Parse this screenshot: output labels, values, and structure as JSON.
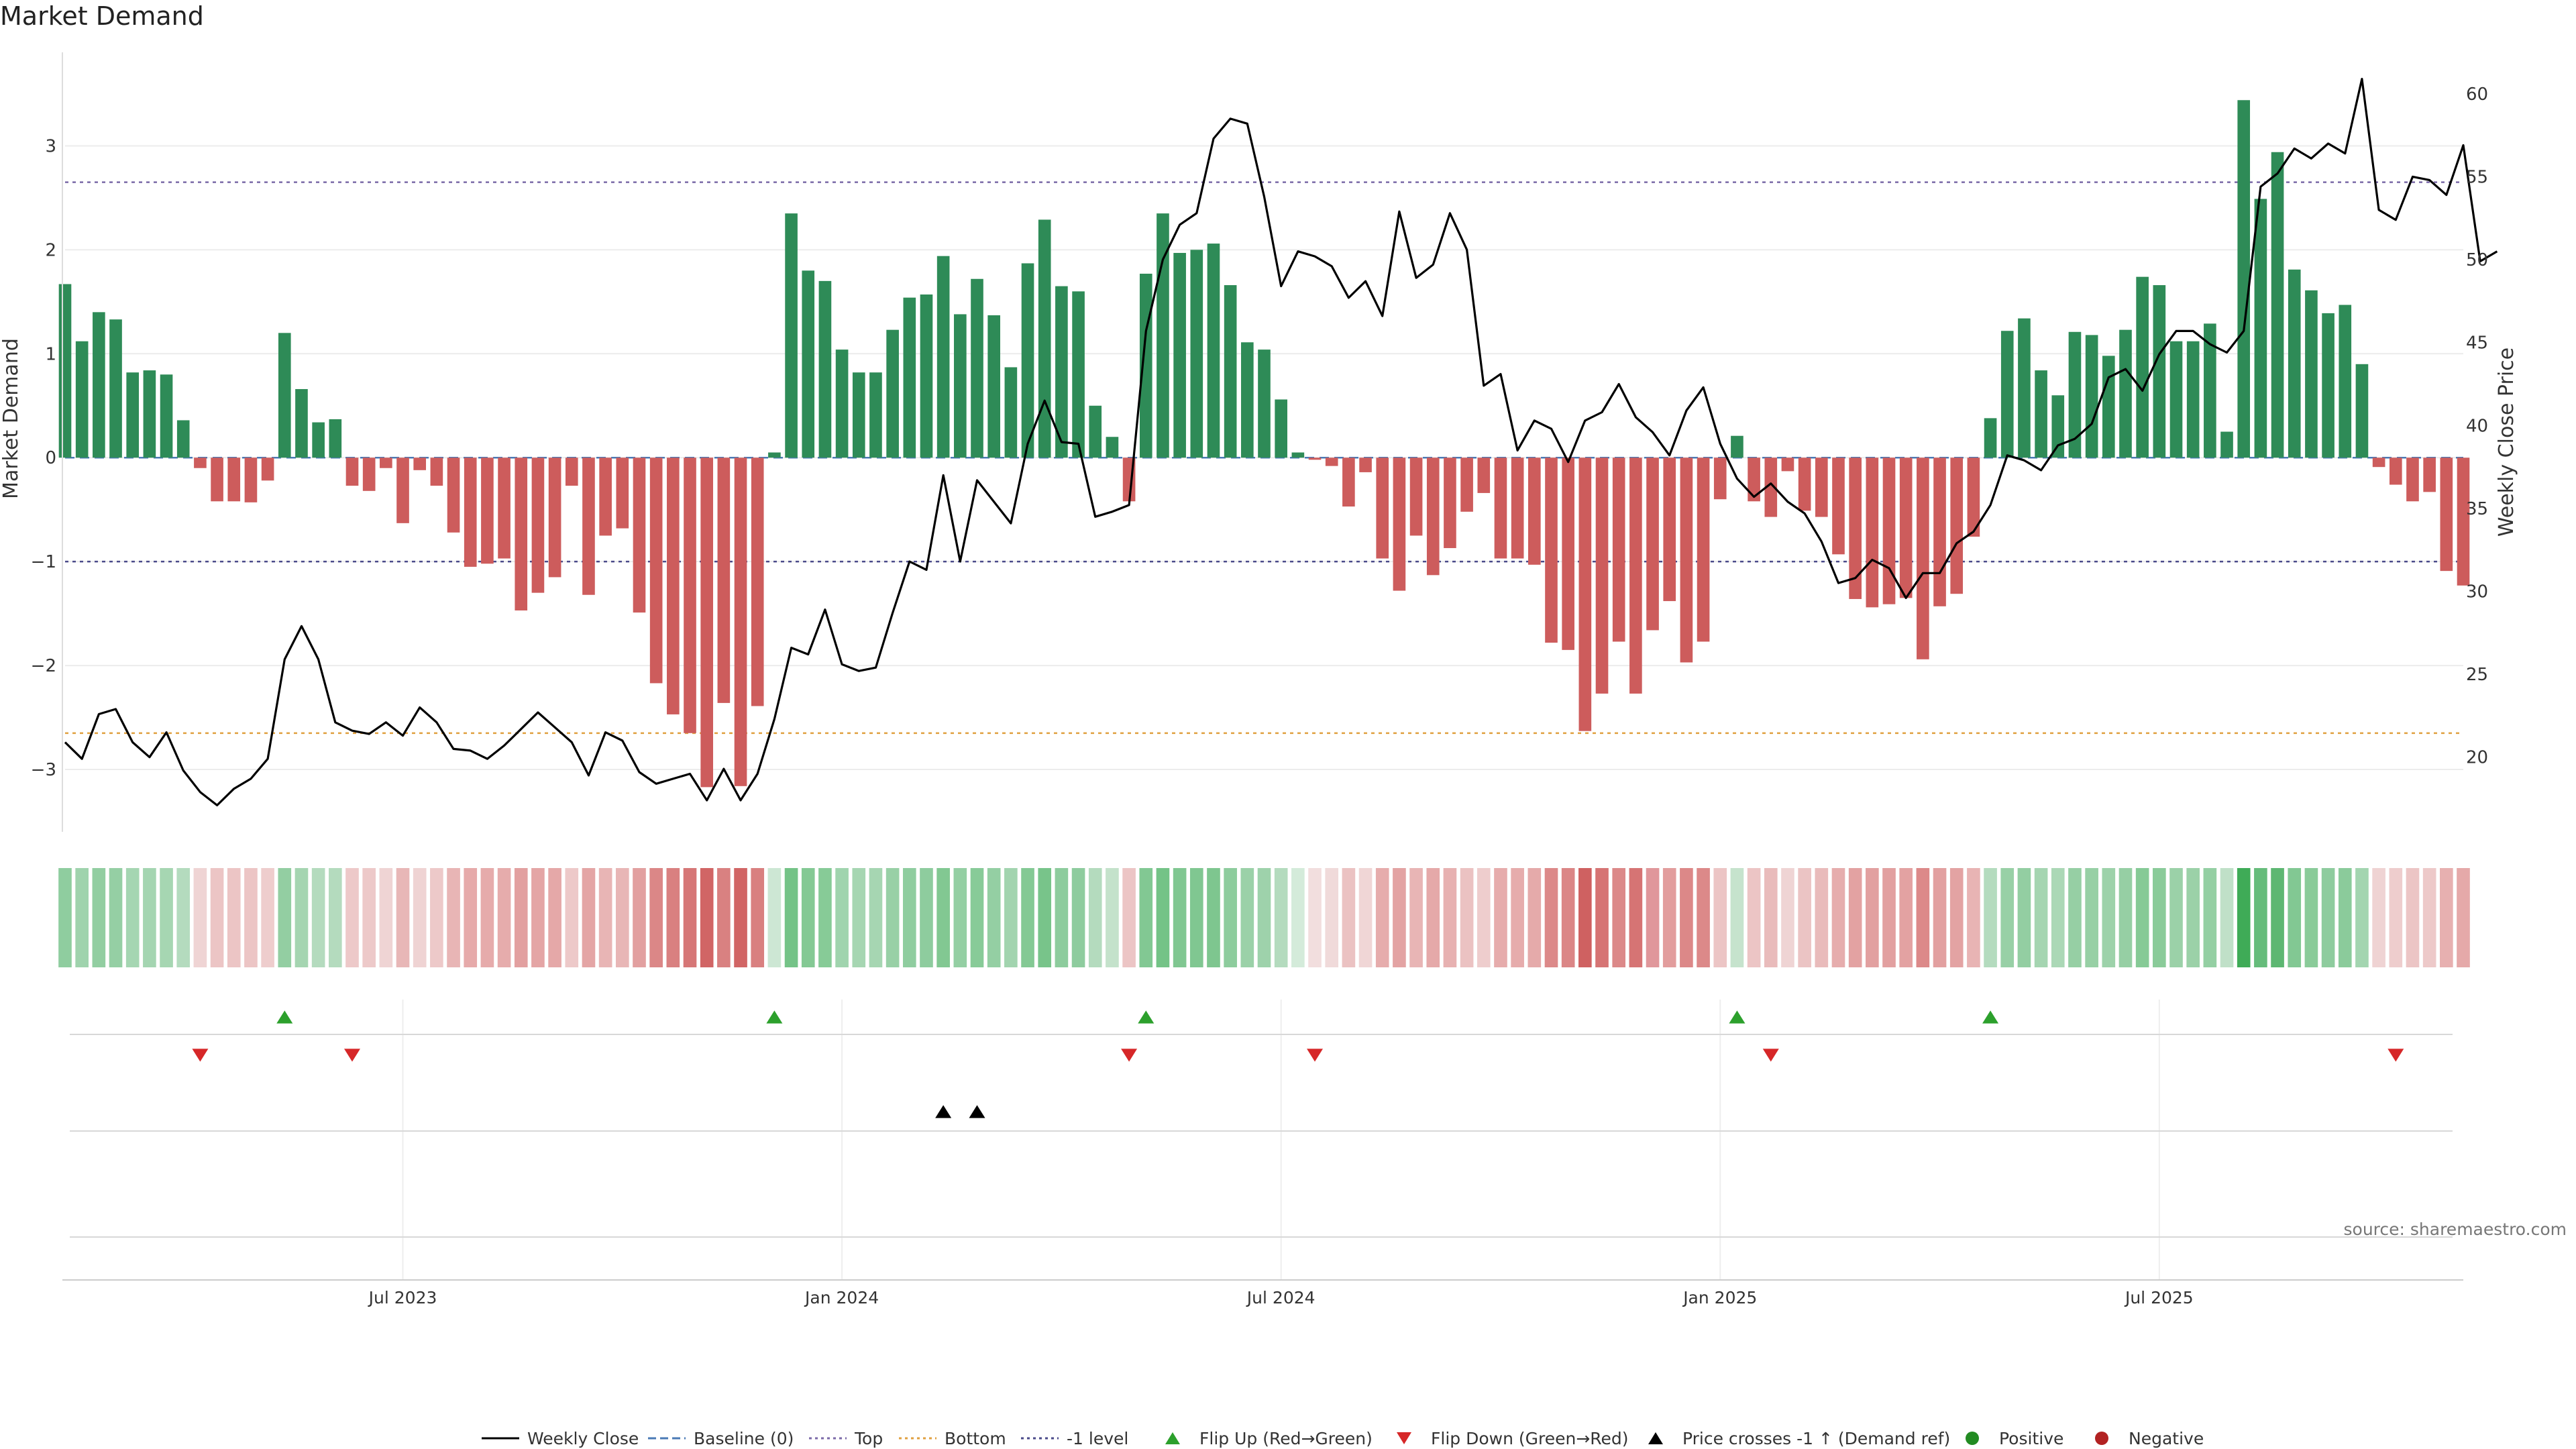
{
  "chart_data": {
    "type": "bar",
    "title": "Market Demand",
    "ylabel": "Market Demand",
    "y2label": "Weekly Close Price",
    "ylim": [
      -3.6,
      3.9
    ],
    "y2lim": [
      15.5,
      62.5
    ],
    "yticks": [
      -3,
      -2,
      -1,
      0,
      1,
      2,
      3
    ],
    "y2ticks": [
      20,
      25,
      30,
      35,
      40,
      45,
      50,
      55,
      60
    ],
    "levels": {
      "top": 2.65,
      "bottom": -2.65,
      "minus_one": -1
    },
    "xticks": [
      {
        "label": "Jul 2023",
        "week": 20
      },
      {
        "label": "Jan 2024",
        "week": 46
      },
      {
        "label": "Jul 2024",
        "week": 72
      },
      {
        "label": "Jan 2025",
        "week": 98
      },
      {
        "label": "Jul 2025",
        "week": 124
      }
    ],
    "demand": [
      1.67,
      1.12,
      1.4,
      1.33,
      0.82,
      0.84,
      0.8,
      0.36,
      -0.1,
      -0.42,
      -0.42,
      -0.43,
      -0.22,
      1.2,
      0.66,
      0.34,
      0.37,
      -0.27,
      -0.32,
      -0.1,
      -0.63,
      -0.12,
      -0.27,
      -0.72,
      -1.05,
      -1.02,
      -0.97,
      -1.47,
      -1.3,
      -1.15,
      -0.27,
      -1.32,
      -0.75,
      -0.68,
      -1.49,
      -2.17,
      -2.47,
      -2.65,
      -3.17,
      -2.36,
      -3.16,
      -2.39,
      0.05,
      2.35,
      1.8,
      1.7,
      1.04,
      0.82,
      0.82,
      1.23,
      1.54,
      1.57,
      1.94,
      1.38,
      1.72,
      1.37,
      0.87,
      1.87,
      2.29,
      1.65,
      1.6,
      0.5,
      0.2,
      -0.42,
      1.77,
      2.35,
      1.97,
      2.0,
      2.06,
      1.66,
      1.11,
      1.04,
      0.56,
      0.05,
      -0.02,
      -0.08,
      -0.47,
      -0.14,
      -0.97,
      -1.28,
      -0.75,
      -1.13,
      -0.87,
      -0.52,
      -0.34,
      -0.97,
      -0.97,
      -1.03,
      -1.78,
      -1.85,
      -2.63,
      -2.27,
      -1.77,
      -2.27,
      -1.66,
      -1.38,
      -1.97,
      -1.77,
      -0.4,
      0.21,
      -0.42,
      -0.57,
      -0.13,
      -0.51,
      -0.57,
      -0.93,
      -1.36,
      -1.44,
      -1.41,
      -1.35,
      -1.94,
      -1.43,
      -1.31,
      -0.76,
      0.38,
      1.22,
      1.34,
      0.84,
      0.6,
      1.21,
      1.18,
      0.98,
      1.23,
      1.74,
      1.66,
      1.12,
      1.12,
      1.29,
      0.25,
      3.44,
      2.49,
      2.94,
      1.81,
      1.61,
      1.39,
      1.47,
      0.9,
      -0.09,
      -0.26,
      -0.42,
      -0.33,
      -1.09,
      -1.23
    ],
    "weekly_close": [
      20.9,
      19.9,
      22.6,
      22.9,
      20.9,
      20.0,
      21.5,
      19.2,
      17.9,
      17.1,
      18.1,
      18.7,
      19.9,
      25.9,
      27.9,
      25.9,
      22.1,
      21.6,
      21.4,
      22.1,
      21.3,
      23.0,
      22.1,
      20.5,
      20.4,
      19.9,
      20.7,
      21.7,
      22.7,
      21.8,
      20.9,
      18.9,
      21.5,
      21.0,
      19.1,
      18.4,
      18.7,
      19.0,
      17.4,
      19.3,
      17.4,
      19.0,
      22.3,
      26.6,
      26.2,
      28.9,
      25.6,
      25.2,
      25.4,
      28.7,
      31.8,
      31.3,
      37.0,
      31.8,
      36.7,
      35.4,
      34.1,
      38.9,
      41.5,
      39.0,
      38.9,
      34.5,
      34.8,
      35.2,
      45.7,
      50.0,
      52.1,
      52.8,
      57.3,
      58.5,
      58.2,
      53.8,
      48.4,
      50.5,
      50.2,
      49.6,
      47.7,
      48.7,
      46.6,
      52.9,
      48.9,
      49.7,
      52.8,
      50.6,
      42.4,
      43.1,
      38.5,
      40.3,
      39.8,
      37.8,
      40.3,
      40.8,
      42.5,
      40.5,
      39.6,
      38.2,
      40.9,
      42.3,
      38.9,
      36.8,
      35.7,
      36.5,
      35.4,
      34.7,
      33.0,
      30.5,
      30.8,
      31.9,
      31.4,
      29.6,
      31.1,
      31.1,
      32.9,
      33.6,
      35.2,
      38.2,
      37.9,
      37.3,
      38.8,
      39.2,
      40.1,
      42.9,
      43.4,
      42.1,
      44.3,
      45.7,
      45.7,
      44.9,
      44.4,
      45.7,
      54.4,
      55.2,
      56.7,
      56.1,
      57.0,
      56.4,
      60.9,
      53.0,
      52.4,
      55.0,
      54.8,
      53.9,
      56.9,
      49.9,
      50.5
    ],
    "strip_shades": [
      "#8fcd9f",
      "#9fd3ad",
      "#92cea1",
      "#95cfa4",
      "#a5d6b2",
      "#a4d5b1",
      "#a6d6b2",
      "#b4dbbe",
      "#efd4d4",
      "#ecc5c5",
      "#ecc5c5",
      "#ecc5c5",
      "#eecdcd",
      "#93cea2",
      "#a5d5b1",
      "#b4dbbe",
      "#b4dbbe",
      "#edc9c9",
      "#edc9c9",
      "#efd4d4",
      "#e8b7b7",
      "#efd3d3",
      "#edc9c9",
      "#e8b5b5",
      "#e6aaaa",
      "#e6abab",
      "#e6acac",
      "#e2a0a0",
      "#e4a5a5",
      "#e5a8a8",
      "#edc9c9",
      "#e4a5a5",
      "#e8b5b5",
      "#e8b6b6",
      "#e2a0a0",
      "#db8787",
      "#d98080",
      "#d67777",
      "#d16565",
      "#d98181",
      "#d16565",
      "#d98080",
      "#cde7d4",
      "#74c387",
      "#84c994",
      "#87cb97",
      "#a0d4ae",
      "#a6d6b2",
      "#a6d6b2",
      "#98d0a6",
      "#8fcd9f",
      "#8ecc9e",
      "#82c892",
      "#94cfa3",
      "#88cb98",
      "#94cfa3",
      "#a2d4af",
      "#84c994",
      "#78c48a",
      "#8dcc9d",
      "#8ecc9e",
      "#b4dbbe",
      "#c4e2cb",
      "#ecc5c5",
      "#82c893",
      "#74c387",
      "#80c791",
      "#80c791",
      "#7ec68f",
      "#8dcc9d",
      "#9bd1a8",
      "#9ed2ab",
      "#b4dbbe",
      "#d4ebda",
      "#f2dede",
      "#f0dada",
      "#ebc2c2",
      "#f0d6d6",
      "#e6acac",
      "#e3a3a3",
      "#e8b5b5",
      "#e5a9a9",
      "#e7b1b1",
      "#ebc2c2",
      "#eecdcd",
      "#e6acac",
      "#e6acac",
      "#e5aaaa",
      "#dc8989",
      "#db8686",
      "#cf6161",
      "#d67474",
      "#dc8989",
      "#d67474",
      "#e0979b",
      "#e29d9d",
      "#dc8888",
      "#dc8989",
      "#ecc5c5",
      "#c6e3cd",
      "#ecc5c5",
      "#e9bbbb",
      "#efd4d4",
      "#ebc4c4",
      "#e9bbbb",
      "#e6adad",
      "#e3a2a2",
      "#e2a0a0",
      "#e2a0a0",
      "#e3a2a2",
      "#dc8989",
      "#e2a0a0",
      "#e3a3a3",
      "#e8b4b4",
      "#b4dbbe",
      "#98d0a6",
      "#93cea2",
      "#a5d5b1",
      "#abd8b6",
      "#96cfa4",
      "#97d0a5",
      "#9dd2aa",
      "#96cfa4",
      "#86ca96",
      "#8acb99",
      "#9bd1a8",
      "#9bd1a8",
      "#94cfa3",
      "#c0e0c8",
      "#3fab57",
      "#66bc7b",
      "#5db772",
      "#82c893",
      "#8acb99",
      "#8ecc9e",
      "#8bcb9b",
      "#a3d5b0",
      "#efd3d3",
      "#eecdcd",
      "#ecc5c5",
      "#edc9c9",
      "#e7b0b0",
      "#e5a9a9"
    ],
    "flip_up_weeks": [
      13,
      42,
      64,
      99,
      114
    ],
    "flip_down_weeks": [
      8,
      17,
      63,
      74,
      101,
      138
    ],
    "price_cross_weeks": [
      52,
      54
    ],
    "legend": [
      {
        "label": "Weekly Close",
        "kind": "line-solid",
        "color": "#000000"
      },
      {
        "label": "Baseline (0)",
        "kind": "line-dashed",
        "color": "#4a7ab5"
      },
      {
        "label": "Top",
        "kind": "line-dotted",
        "color": "#7b6aa8"
      },
      {
        "label": "Bottom",
        "kind": "line-dotted",
        "color": "#e0a040"
      },
      {
        "label": "-1 level",
        "kind": "line-dotted",
        "color": "#4a4a8a"
      },
      {
        "label": "Flip Up (Red→Green)",
        "kind": "tri-up",
        "color": "#2ca02c"
      },
      {
        "label": "Flip Down (Green→Red)",
        "kind": "tri-down",
        "color": "#d62728"
      },
      {
        "label": "Price crosses -1 ↑ (Demand ref)",
        "kind": "tri-up",
        "color": "#000000"
      },
      {
        "label": "Positive",
        "kind": "dot",
        "color": "#228b22"
      },
      {
        "label": "Negative",
        "kind": "dot",
        "color": "#b22222"
      }
    ],
    "colors": {
      "positive": "#2e8b57",
      "negative": "#cd5c5c",
      "price": "#000000"
    }
  },
  "source": "source: sharemaestro.com"
}
